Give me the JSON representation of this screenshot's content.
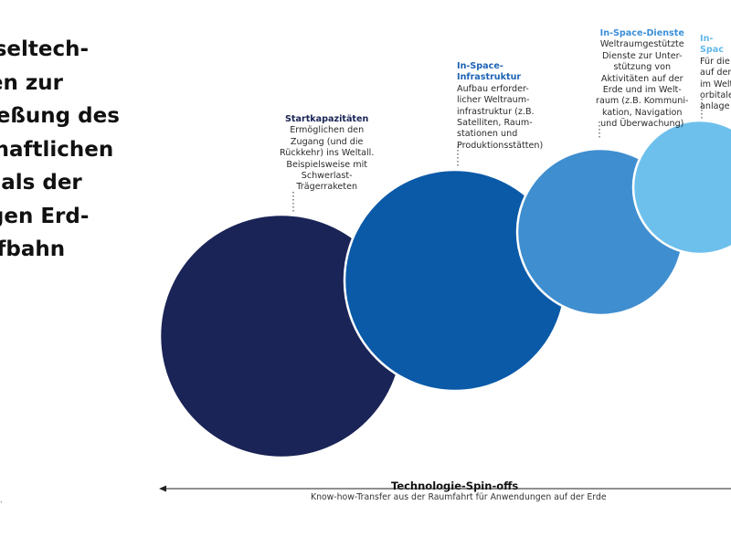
{
  "title_lines": [
    "sseltech-",
    "ien zur",
    "ließung des",
    "chaftlichen",
    "zials der",
    "igen Erd-",
    "ufbahn"
  ],
  "colors": {
    "circle_1": "#1a2456",
    "circle_2": "#0a5aa8",
    "circle_3": "#3f8ed0",
    "circle_4": "#6ec0ec",
    "background": "#ffffff",
    "text": "#111111"
  },
  "stages": [
    {
      "name": "Startkapazitäten",
      "lines": [
        "Ermöglichen den",
        "Zugang (und die",
        "Rückkehr) ins Weltall.",
        "Beispielsweise mit",
        "Schwerlast-",
        "Trägerraketen"
      ]
    },
    {
      "name_lines": [
        "In-Space-",
        "Infrastruktur"
      ],
      "lines": [
        "Aufbau erforder-",
        "licher Weltraum-",
        "infrastruktur (z.B.",
        "Satelliten, Raum-",
        "stationen und",
        "Produktionsstätten)"
      ]
    },
    {
      "name": "In-Space-Dienste",
      "lines": [
        "Weltraumgestützte",
        "Dienste zur Unter-",
        "stützung von",
        "Aktivitäten auf der",
        "Erde und im Welt-",
        "raum (z.B. Kommuni-",
        "kation, Navigation",
        "und Überwachung)"
      ]
    },
    {
      "name": "In-Spac",
      "lines": [
        "Für die",
        "auf der",
        "im Welt",
        "orbitale",
        "anlage"
      ]
    }
  ],
  "spinoff": {
    "title": "Technologie-Spin-offs",
    "subtitle": "Know-how-Transfer aus der Raumfahrt für Anwendungen auf der Erde"
  },
  "corner_marker": "."
}
